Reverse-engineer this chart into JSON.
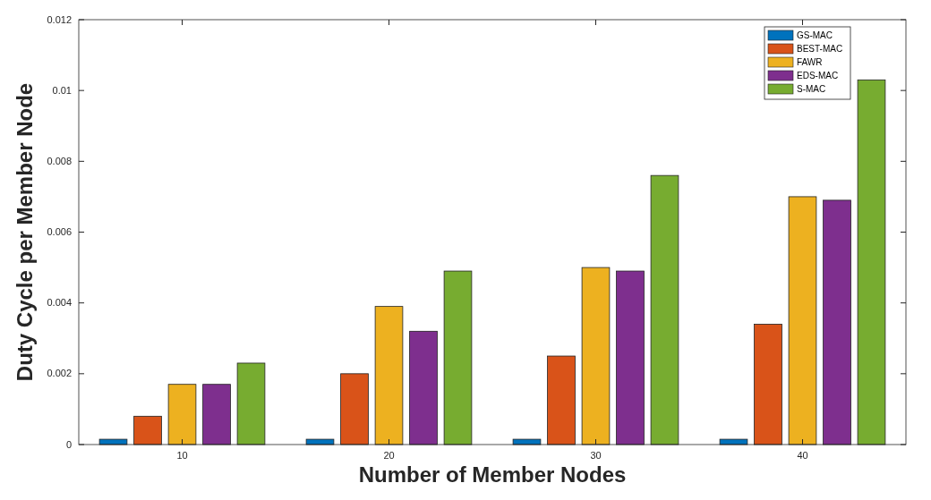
{
  "chart_data": {
    "type": "bar",
    "xlabel": "Number of Member Nodes",
    "ylabel": "Duty Cycle per Member Node",
    "categories": [
      "10",
      "20",
      "30",
      "40"
    ],
    "series": [
      {
        "name": "GS-MAC",
        "color": "#0072bd",
        "values": [
          0.00015,
          0.00015,
          0.00015,
          0.00015
        ]
      },
      {
        "name": "BEST-MAC",
        "color": "#d95319",
        "values": [
          0.0008,
          0.002,
          0.0025,
          0.0034
        ]
      },
      {
        "name": "FAWR",
        "color": "#edb120",
        "values": [
          0.0017,
          0.0039,
          0.005,
          0.007
        ]
      },
      {
        "name": "EDS-MAC",
        "color": "#7e2f8e",
        "values": [
          0.0017,
          0.0032,
          0.0049,
          0.0069
        ]
      },
      {
        "name": "S-MAC",
        "color": "#77ac30",
        "values": [
          0.0023,
          0.0049,
          0.0076,
          0.0103
        ]
      }
    ],
    "ylim": [
      0,
      0.012
    ],
    "yticks": [
      0,
      0.002,
      0.004,
      0.006,
      0.008,
      0.01,
      0.012
    ],
    "grid": false,
    "legend": "top right"
  }
}
